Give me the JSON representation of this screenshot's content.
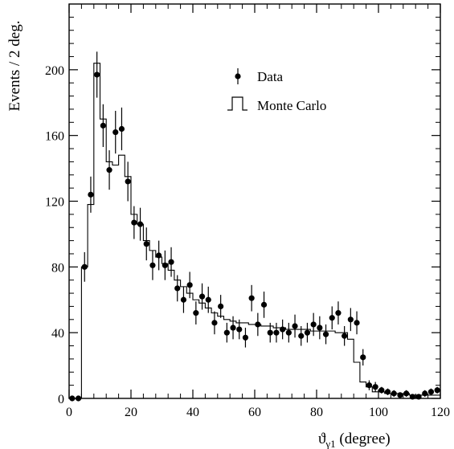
{
  "chart_data": {
    "type": "scatter",
    "title": "",
    "xlabel_main": "ϑ",
    "xlabel_sub": "γ1",
    "xlabel_unit": " (degree)",
    "ylabel": "Events / 2 deg.",
    "xlim": [
      0,
      120
    ],
    "ylim": [
      0,
      240
    ],
    "xticks": [
      0,
      20,
      40,
      60,
      80,
      100,
      120
    ],
    "yticks": [
      0,
      40,
      80,
      120,
      160,
      200
    ],
    "legend": {
      "placement": "top-right",
      "data_label": "Data",
      "mc_label": "Monte Carlo"
    },
    "series": [
      {
        "name": "Data",
        "style": "points-with-errorbars",
        "x": [
          1,
          3,
          5,
          7,
          9,
          11,
          13,
          15,
          17,
          19,
          21,
          23,
          25,
          27,
          29,
          31,
          33,
          35,
          37,
          39,
          41,
          43,
          45,
          47,
          49,
          51,
          53,
          55,
          57,
          59,
          61,
          63,
          65,
          67,
          69,
          71,
          73,
          75,
          77,
          79,
          81,
          83,
          85,
          87,
          89,
          91,
          93,
          95,
          97,
          99,
          101,
          103,
          105,
          107,
          109,
          111,
          113,
          115,
          117,
          119
        ],
        "y": [
          0,
          0,
          80,
          124,
          197,
          166,
          139,
          162,
          164,
          132,
          107,
          106,
          94,
          81,
          87,
          81,
          83,
          67,
          60,
          69,
          52,
          62,
          60,
          46,
          56,
          40,
          43,
          42,
          37,
          61,
          45,
          57,
          40,
          40,
          42,
          40,
          44,
          38,
          40,
          45,
          43,
          39,
          49,
          52,
          38,
          48,
          46,
          25,
          8,
          7,
          5,
          4,
          3,
          2,
          3,
          1,
          1,
          3,
          4,
          5
        ],
        "yerr": [
          0,
          0,
          9,
          11,
          14,
          13,
          12,
          13,
          13,
          12,
          10,
          10,
          10,
          9,
          9,
          9,
          9,
          8,
          8,
          8,
          7,
          8,
          8,
          7,
          7,
          6,
          7,
          6,
          6,
          8,
          7,
          8,
          6,
          6,
          6,
          6,
          7,
          6,
          6,
          7,
          7,
          6,
          7,
          7,
          6,
          7,
          7,
          5,
          3,
          3,
          2,
          2,
          2,
          1,
          2,
          1,
          1,
          2,
          2,
          2
        ]
      },
      {
        "name": "Monte Carlo",
        "style": "histogram-step",
        "bin_edges": [
          0,
          2,
          4,
          6,
          8,
          10,
          12,
          14,
          16,
          18,
          20,
          22,
          24,
          26,
          28,
          30,
          32,
          34,
          36,
          38,
          40,
          42,
          44,
          46,
          48,
          50,
          52,
          54,
          56,
          58,
          60,
          62,
          64,
          66,
          68,
          70,
          72,
          74,
          76,
          78,
          80,
          82,
          84,
          86,
          88,
          90,
          92,
          94,
          96,
          98,
          100,
          102,
          104,
          106,
          108,
          110,
          112,
          114,
          116,
          118,
          120
        ],
        "values": [
          0,
          0,
          80,
          118,
          204,
          170,
          144,
          142,
          148,
          135,
          112,
          106,
          96,
          90,
          86,
          82,
          78,
          72,
          68,
          64,
          60,
          58,
          55,
          52,
          50,
          48,
          47,
          46,
          46,
          45,
          45,
          44,
          44,
          43,
          43,
          42,
          42,
          42,
          42,
          41,
          41,
          41,
          41,
          40,
          40,
          36,
          22,
          10,
          7,
          4,
          4,
          3,
          3,
          3,
          3,
          2,
          2,
          2,
          2,
          2
        ]
      }
    ]
  }
}
